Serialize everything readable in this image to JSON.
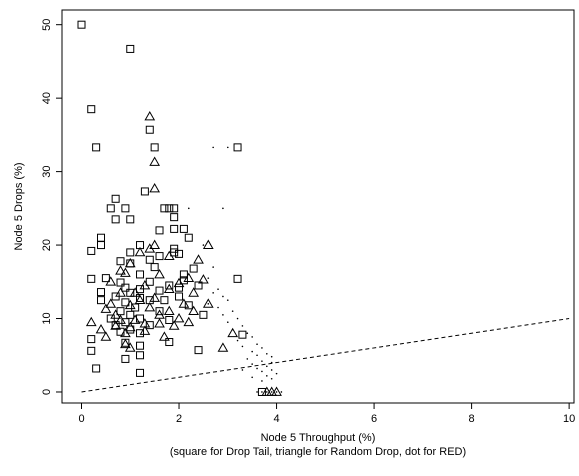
{
  "chart_data": {
    "type": "scatter",
    "title": "",
    "xlabel": "Node 5 Throughput (%)",
    "xlabel_note": "(square for Drop Tail, triangle for Random Drop, dot for RED)",
    "ylabel": "Node 5 Drops (%)",
    "xlim": [
      -0.4,
      10.1
    ],
    "ylim": [
      -1.5,
      52
    ],
    "x_ticks": [
      0,
      2,
      4,
      6,
      8,
      10
    ],
    "y_ticks": [
      0,
      10,
      20,
      30,
      40,
      50
    ],
    "grid": false,
    "legend": "none",
    "reference_line": {
      "style": "dashed",
      "points": [
        [
          0,
          0
        ],
        [
          10,
          10
        ]
      ]
    },
    "series": [
      {
        "marker": "square",
        "points": [
          [
            0.0,
            50.0
          ],
          [
            1.0,
            46.7
          ],
          [
            0.2,
            38.5
          ],
          [
            0.3,
            33.3
          ],
          [
            3.2,
            33.3
          ],
          [
            1.4,
            35.7
          ],
          [
            1.5,
            33.3
          ],
          [
            1.3,
            27.3
          ],
          [
            0.7,
            26.3
          ],
          [
            0.6,
            25.0
          ],
          [
            0.9,
            25.0
          ],
          [
            1.7,
            25.0
          ],
          [
            1.8,
            25.0
          ],
          [
            1.9,
            25.0
          ],
          [
            1.9,
            23.8
          ],
          [
            0.7,
            23.5
          ],
          [
            1.0,
            23.5
          ],
          [
            1.9,
            22.2
          ],
          [
            2.1,
            22.2
          ],
          [
            1.6,
            22.0
          ],
          [
            2.2,
            21.0
          ],
          [
            0.4,
            21.0
          ],
          [
            1.2,
            20.0
          ],
          [
            0.4,
            20.0
          ],
          [
            1.9,
            19.5
          ],
          [
            0.2,
            19.2
          ],
          [
            1.9,
            19.0
          ],
          [
            1.0,
            19.0
          ],
          [
            1.6,
            18.5
          ],
          [
            2.0,
            18.8
          ],
          [
            1.4,
            18.0
          ],
          [
            0.8,
            17.8
          ],
          [
            1.0,
            17.5
          ],
          [
            1.5,
            17.0
          ],
          [
            2.3,
            16.8
          ],
          [
            1.2,
            16.0
          ],
          [
            2.1,
            16.0
          ],
          [
            0.2,
            15.4
          ],
          [
            3.2,
            15.4
          ],
          [
            0.5,
            15.5
          ],
          [
            2.1,
            15.2
          ],
          [
            1.4,
            15.0
          ],
          [
            0.8,
            14.9
          ],
          [
            2.4,
            14.5
          ],
          [
            1.8,
            14.5
          ],
          [
            0.9,
            14.2
          ],
          [
            1.2,
            14.0
          ],
          [
            2.0,
            14.2
          ],
          [
            1.6,
            13.8
          ],
          [
            0.4,
            13.6
          ],
          [
            1.0,
            13.5
          ],
          [
            2.0,
            13.0
          ],
          [
            0.7,
            13.0
          ],
          [
            1.2,
            12.8
          ],
          [
            0.4,
            12.5
          ],
          [
            1.4,
            12.5
          ],
          [
            1.7,
            12.5
          ],
          [
            0.9,
            12.2
          ],
          [
            1.1,
            11.5
          ],
          [
            2.2,
            11.8
          ],
          [
            0.8,
            11.0
          ],
          [
            1.6,
            11.0
          ],
          [
            1.0,
            10.5
          ],
          [
            2.5,
            10.5
          ],
          [
            0.6,
            10.0
          ],
          [
            1.2,
            10.0
          ],
          [
            0.9,
            9.5
          ],
          [
            1.8,
            9.8
          ],
          [
            0.7,
            9.1
          ],
          [
            1.4,
            9.1
          ],
          [
            1.0,
            8.5
          ],
          [
            1.2,
            8.0
          ],
          [
            0.8,
            8.2
          ],
          [
            0.2,
            7.2
          ],
          [
            3.3,
            7.8
          ],
          [
            0.9,
            6.7
          ],
          [
            1.8,
            6.8
          ],
          [
            1.2,
            6.3
          ],
          [
            0.2,
            5.6
          ],
          [
            2.4,
            5.7
          ],
          [
            0.9,
            4.5
          ],
          [
            1.2,
            5.0
          ],
          [
            0.3,
            3.2
          ],
          [
            1.2,
            2.6
          ],
          [
            3.7,
            0.0
          ]
        ]
      },
      {
        "marker": "triangle",
        "points": [
          [
            1.4,
            37.5
          ],
          [
            1.5,
            31.3
          ],
          [
            1.5,
            27.7
          ],
          [
            1.5,
            20.0
          ],
          [
            1.4,
            19.5
          ],
          [
            2.6,
            20.0
          ],
          [
            1.2,
            19.0
          ],
          [
            1.8,
            18.5
          ],
          [
            2.4,
            18.0
          ],
          [
            1.0,
            17.5
          ],
          [
            0.8,
            16.5
          ],
          [
            0.9,
            16.2
          ],
          [
            1.6,
            16.0
          ],
          [
            2.2,
            15.5
          ],
          [
            2.5,
            15.3
          ],
          [
            0.6,
            15.0
          ],
          [
            1.3,
            14.5
          ],
          [
            2.0,
            14.8
          ],
          [
            1.8,
            14.0
          ],
          [
            0.8,
            13.5
          ],
          [
            1.1,
            13.5
          ],
          [
            2.3,
            13.5
          ],
          [
            1.5,
            12.8
          ],
          [
            1.2,
            12.5
          ],
          [
            2.1,
            12.0
          ],
          [
            2.6,
            12.0
          ],
          [
            0.6,
            12.0
          ],
          [
            1.0,
            11.8
          ],
          [
            0.5,
            11.3
          ],
          [
            1.4,
            11.5
          ],
          [
            1.8,
            11.0
          ],
          [
            2.3,
            11.0
          ],
          [
            0.7,
            10.5
          ],
          [
            1.6,
            10.5
          ],
          [
            2.0,
            10.0
          ],
          [
            0.8,
            9.8
          ],
          [
            1.1,
            9.8
          ],
          [
            0.2,
            9.5
          ],
          [
            1.3,
            9.3
          ],
          [
            1.6,
            9.3
          ],
          [
            2.2,
            9.5
          ],
          [
            0.7,
            9.0
          ],
          [
            1.0,
            8.8
          ],
          [
            1.9,
            9.0
          ],
          [
            0.4,
            8.5
          ],
          [
            1.3,
            8.3
          ],
          [
            0.9,
            8.0
          ],
          [
            3.1,
            8.0
          ],
          [
            0.5,
            7.5
          ],
          [
            1.7,
            7.5
          ],
          [
            0.9,
            6.5
          ],
          [
            2.9,
            6.0
          ],
          [
            1.0,
            6.0
          ],
          [
            3.8,
            0.0
          ],
          [
            3.9,
            0.0
          ],
          [
            4.0,
            0.0
          ]
        ]
      },
      {
        "marker": "dot",
        "points": [
          [
            2.7,
            33.3
          ],
          [
            3.0,
            33.3
          ],
          [
            2.9,
            25.0
          ],
          [
            2.2,
            25.0
          ],
          [
            2.5,
            20.0
          ],
          [
            2.7,
            17.0
          ],
          [
            2.6,
            15.5
          ],
          [
            2.8,
            14.0
          ],
          [
            2.7,
            13.5
          ],
          [
            2.9,
            13.0
          ],
          [
            3.0,
            12.5
          ],
          [
            2.6,
            12.0
          ],
          [
            2.8,
            11.5
          ],
          [
            3.1,
            11.0
          ],
          [
            2.9,
            10.5
          ],
          [
            3.2,
            10.0
          ],
          [
            3.0,
            9.5
          ],
          [
            3.3,
            9.0
          ],
          [
            3.1,
            8.5
          ],
          [
            3.4,
            8.0
          ],
          [
            3.5,
            7.5
          ],
          [
            3.2,
            7.0
          ],
          [
            3.6,
            6.5
          ],
          [
            3.3,
            6.2
          ],
          [
            3.7,
            6.0
          ],
          [
            3.5,
            5.5
          ],
          [
            3.8,
            5.2
          ],
          [
            3.6,
            5.0
          ],
          [
            3.9,
            4.8
          ],
          [
            3.4,
            4.5
          ],
          [
            3.7,
            4.2
          ],
          [
            3.9,
            4.0
          ],
          [
            3.5,
            3.8
          ],
          [
            3.8,
            3.5
          ],
          [
            3.6,
            3.2
          ],
          [
            3.9,
            3.0
          ],
          [
            3.3,
            3.0
          ],
          [
            3.7,
            2.8
          ],
          [
            4.0,
            2.5
          ],
          [
            3.8,
            2.2
          ],
          [
            3.5,
            2.0
          ],
          [
            3.9,
            1.8
          ],
          [
            3.7,
            1.5
          ],
          [
            3.6,
            0.0
          ],
          [
            3.7,
            0.0
          ],
          [
            3.8,
            0.0
          ],
          [
            3.9,
            0.0
          ],
          [
            4.0,
            0.0
          ],
          [
            4.1,
            0.0
          ]
        ]
      }
    ]
  }
}
